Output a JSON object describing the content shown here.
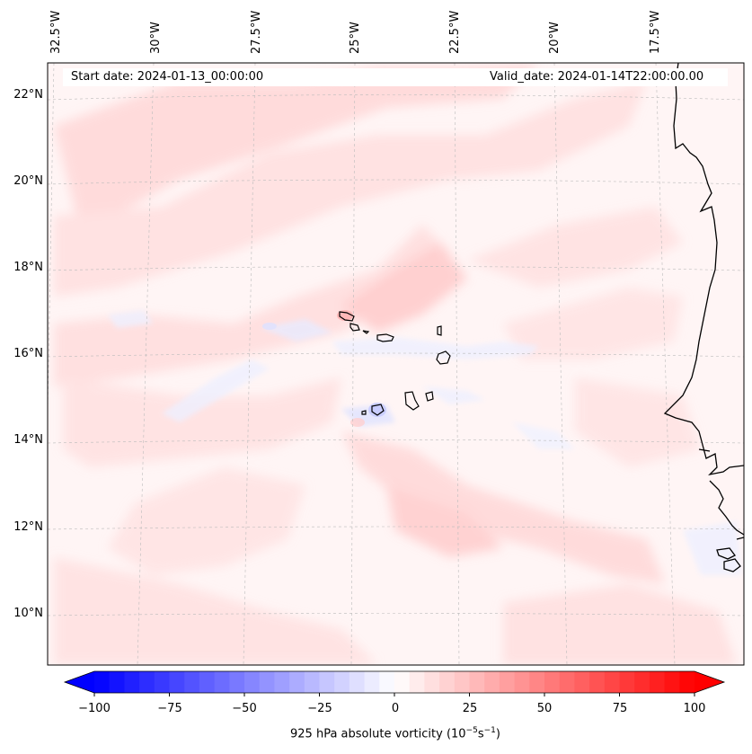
{
  "header": {
    "start_date": "Start date: 2024-01-13_00:00:00",
    "valid_date": "Valid_date: 2024-01-14T22:00:00.00"
  },
  "map": {
    "lon_labels": [
      "32.5°W",
      "30°W",
      "27.5°W",
      "25°W",
      "22.5°W",
      "20°W",
      "17.5°W"
    ],
    "lat_labels": [
      "22°N",
      "20°N",
      "18°N",
      "16°N",
      "14°N",
      "12°N",
      "10°N"
    ],
    "features": [
      "Cape Verde islands",
      "West African coastline"
    ],
    "field_description": "weak positive vorticity (light red) streaks over most of domain, small negative (light blue) patches near islands"
  },
  "colorbar": {
    "label": "925 hPa absolute vorticity (10",
    "label_exp1": "−5",
    "label_mid": "s",
    "label_exp2": "−1",
    "label_end": ")",
    "ticks": [
      "−100",
      "−75",
      "−50",
      "−25",
      "0",
      "25",
      "50",
      "75",
      "100"
    ],
    "vmin": -100,
    "vmax": 100,
    "step": 5,
    "colors": {
      "neg": "#0000ff",
      "mid": "#ffffff",
      "pos": "#ff0000"
    }
  }
}
